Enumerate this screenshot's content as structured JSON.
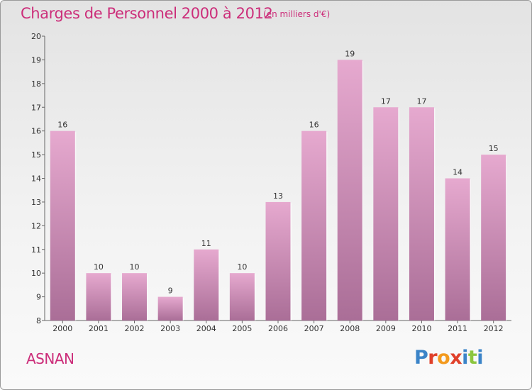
{
  "header": {
    "title": "Charges de Personnel 2000 à 2012",
    "subtitle": "(en milliers d'€)"
  },
  "footer": {
    "place": "ASNAN",
    "brand": "Proxiti"
  },
  "colors": {
    "title": "#cc2e7a",
    "bar_top": "#e6a9cf",
    "bar_bottom": "#aa6e97",
    "brand_letters": [
      "#3b84c8",
      "#e0402a",
      "#f39a1e",
      "#e0402a",
      "#3b84c8",
      "#8cc63f",
      "#3b84c8"
    ]
  },
  "chart_data": {
    "type": "bar",
    "title": "Charges de Personnel 2000 à 2012",
    "subtitle": "(en milliers d'€)",
    "categories": [
      "2000",
      "2001",
      "2002",
      "2003",
      "2004",
      "2005",
      "2006",
      "2007",
      "2008",
      "2009",
      "2010",
      "2011",
      "2012"
    ],
    "values": [
      16,
      10,
      10,
      9,
      11,
      10,
      13,
      16,
      19,
      17,
      17,
      14,
      15
    ],
    "ylim": [
      8,
      20
    ],
    "yticks": [
      8,
      9,
      10,
      11,
      12,
      13,
      14,
      15,
      16,
      17,
      18,
      19,
      20
    ],
    "grid": false,
    "legend": "none",
    "data_labels": true
  }
}
